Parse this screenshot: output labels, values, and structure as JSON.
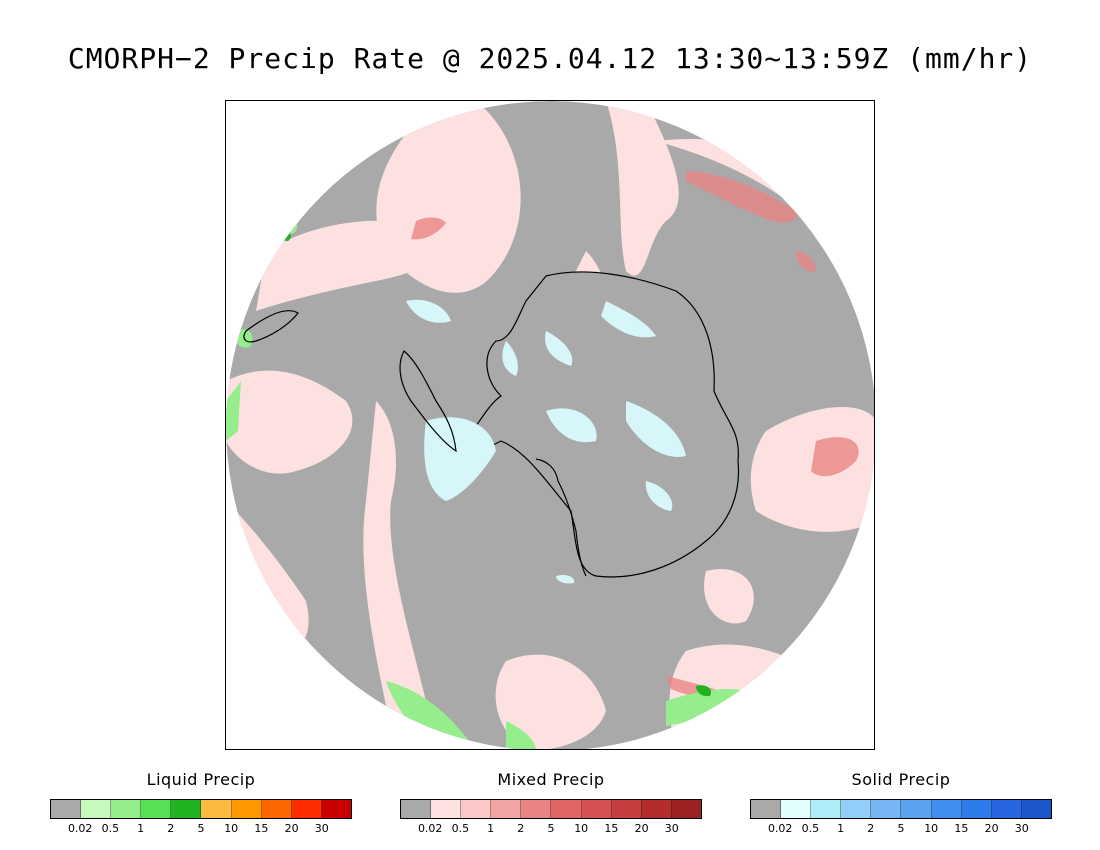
{
  "title": "CMORPH−2 Precip Rate @ 2025.04.12 13:30~13:59Z (mm/hr)",
  "map": {
    "projection": "south-polar-stereographic",
    "background_color": "#a9a9a9",
    "coastline_color": "#000000",
    "ice_color": "#d6f6fa"
  },
  "legends": [
    {
      "title": "Liquid Precip",
      "colors": [
        "#a9a9a9",
        "#c7f9bd",
        "#95ee8b",
        "#55e055",
        "#22b323",
        "#fcbb3e",
        "#fd9800",
        "#fb6800",
        "#fd2d00",
        "#c70000"
      ],
      "ticks": [
        "0.02",
        "0.5",
        "1",
        "2",
        "5",
        "10",
        "15",
        "20",
        "30"
      ]
    },
    {
      "title": "Mixed Precip",
      "colors": [
        "#a9a9a9",
        "#fde1e1",
        "#fbc7c7",
        "#f3a4a4",
        "#e98484",
        "#e06565",
        "#d65252",
        "#c63e3e",
        "#b42c2c",
        "#9c2222"
      ],
      "ticks": [
        "0.02",
        "0.5",
        "1",
        "2",
        "5",
        "10",
        "15",
        "20",
        "30"
      ]
    },
    {
      "title": "Solid Precip",
      "colors": [
        "#a9a9a9",
        "#e1fefe",
        "#b0ecf7",
        "#92cef7",
        "#76b6f4",
        "#5ba2f1",
        "#428ef0",
        "#2f7bec",
        "#2766e0",
        "#1d57ce"
      ],
      "ticks": [
        "0.02",
        "0.5",
        "1",
        "2",
        "5",
        "10",
        "15",
        "20",
        "30"
      ]
    }
  ]
}
